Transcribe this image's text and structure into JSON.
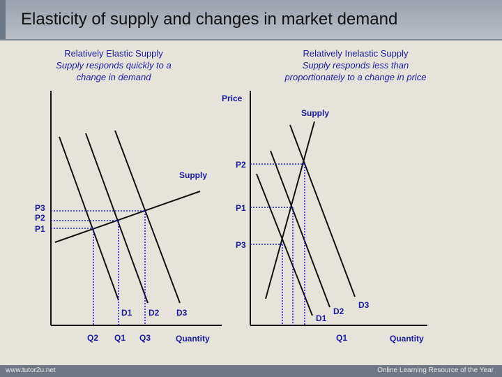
{
  "slide": {
    "title": "Elasticity of supply and changes in market demand",
    "footer_left": "www.tutor2u.net",
    "footer_right": "Online Learning Resource of the Year"
  },
  "left_panel": {
    "heading": "Relatively Elastic Supply",
    "subheading_line1": "Supply responds quickly to a",
    "subheading_line2": "change in demand",
    "supply_label": "Supply",
    "x_axis_label": "Quantity",
    "price_labels": [
      "P3",
      "P2",
      "P1"
    ],
    "quantity_labels": [
      "Q2",
      "Q1",
      "Q3"
    ],
    "demand_labels": [
      "D1",
      "D2",
      "D3"
    ]
  },
  "right_panel": {
    "heading": "Relatively Inelastic Supply",
    "subheading_line1": "Supply responds less than",
    "subheading_line2": "proportionately to a change in price",
    "y_axis_label": "Price",
    "supply_label": "Supply",
    "x_axis_label": "Quantity",
    "price_labels": [
      "P2",
      "P1",
      "P3"
    ],
    "quantity_labels": [
      "Q1"
    ],
    "demand_labels": [
      "D3",
      "D2",
      "D1"
    ]
  },
  "colors": {
    "label": "#1a1aa0",
    "guide": "#1a1ad0",
    "line": "#111111"
  }
}
